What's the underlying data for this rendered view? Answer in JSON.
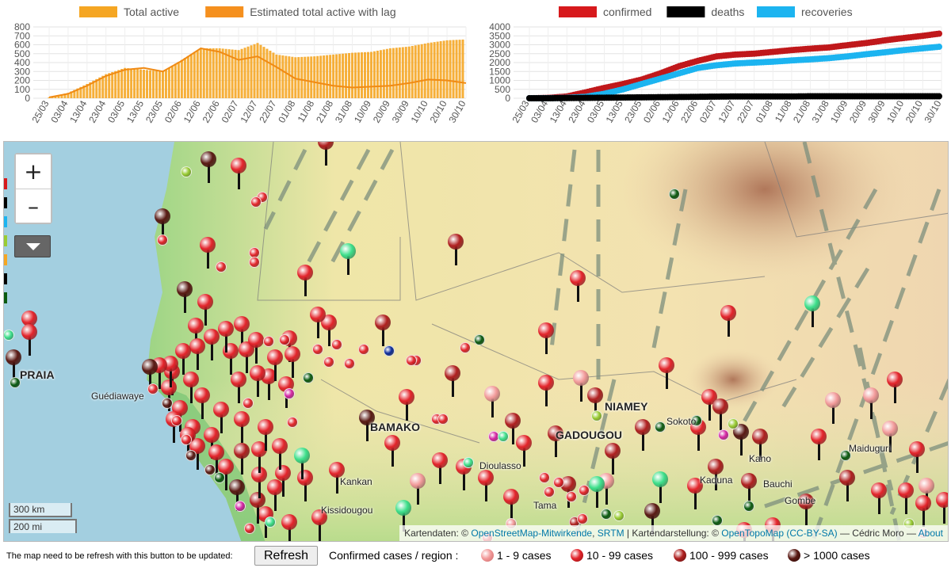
{
  "charts": {
    "left": {
      "legend": [
        {
          "label": "Total active",
          "color": "#f5a623"
        },
        {
          "label": "Estimated total active with lag",
          "color": "#f5901e"
        }
      ],
      "yticks": [
        "800",
        "700",
        "600",
        "500",
        "400",
        "300",
        "200",
        "100",
        "0"
      ]
    },
    "right": {
      "legend": [
        {
          "label": "confirmed",
          "color": "#d7191c"
        },
        {
          "label": "deaths",
          "color": "#000000"
        },
        {
          "label": "recoveries",
          "color": "#1cb4f0"
        }
      ],
      "yticks": [
        "4000",
        "3500",
        "3000",
        "2500",
        "2000",
        "1500",
        "1000",
        "500",
        "0"
      ]
    }
  },
  "chart_data": [
    {
      "type": "bar",
      "ylim": [
        0,
        800
      ],
      "x": [
        "25/03",
        "03/04",
        "13/04",
        "23/04",
        "03/05",
        "13/05",
        "23/05",
        "02/06",
        "12/06",
        "22/06",
        "02/07",
        "12/07",
        "22/07",
        "01/08",
        "11/08",
        "21/08",
        "31/08",
        "10/09",
        "20/09",
        "30/09",
        "10/10",
        "20/10",
        "30/10"
      ],
      "series": [
        {
          "name": "Total active",
          "values": [
            10,
            60,
            160,
            270,
            340,
            320,
            300,
            430,
            560,
            560,
            540,
            620,
            490,
            460,
            470,
            490,
            510,
            520,
            560,
            580,
            620,
            650,
            660
          ]
        },
        {
          "name": "Estimated total active with lag",
          "values": [
            10,
            50,
            140,
            250,
            320,
            340,
            300,
            420,
            560,
            520,
            430,
            470,
            350,
            220,
            180,
            140,
            120,
            130,
            140,
            170,
            210,
            200,
            170
          ]
        }
      ]
    },
    {
      "type": "line",
      "ylim": [
        0,
        4000
      ],
      "x": [
        "25/03",
        "03/04",
        "13/04",
        "23/04",
        "03/05",
        "13/05",
        "23/05",
        "02/06",
        "12/06",
        "22/06",
        "02/07",
        "12/07",
        "22/07",
        "01/08",
        "11/08",
        "21/08",
        "31/08",
        "10/09",
        "20/09",
        "30/09",
        "10/10",
        "20/10",
        "30/10"
      ],
      "series": [
        {
          "name": "confirmed",
          "values": [
            0,
            20,
            100,
            330,
            580,
            800,
            1050,
            1400,
            1800,
            2100,
            2350,
            2450,
            2500,
            2600,
            2700,
            2780,
            2850,
            2980,
            3100,
            3250,
            3380,
            3500,
            3640
          ]
        },
        {
          "name": "deaths",
          "values": [
            0,
            0,
            10,
            20,
            30,
            40,
            50,
            60,
            70,
            80,
            90,
            100,
            100,
            100,
            100,
            110,
            110,
            110,
            110,
            110,
            110,
            110,
            110
          ]
        },
        {
          "name": "recoveries",
          "values": [
            0,
            5,
            20,
            80,
            250,
            500,
            800,
            1100,
            1400,
            1700,
            1850,
            1950,
            2000,
            2050,
            2120,
            2180,
            2250,
            2350,
            2470,
            2580,
            2700,
            2800,
            2900
          ]
        }
      ]
    }
  ],
  "map": {
    "zoom_in": "+",
    "zoom_out": "–",
    "scale_km": "300 km",
    "scale_mi": "200 mi",
    "labels": [
      "PRAIA",
      "BAMAKO",
      "NIAMEY",
      "GADOUGOU",
      "Guédiawaye",
      "Kankan",
      "Kissidougou",
      "Kano",
      "Maiduguri",
      "Bauchi",
      "Sokoto",
      "Dioulasso",
      "Tama",
      "Gombe",
      "Kaduna"
    ],
    "attribution": {
      "prefix": "Kartendaten: ©",
      "osm": "OpenStreetMap-Mitwirkende",
      "srtm": "SRTM",
      "mid": "| Kartendarstellung: ©",
      "otm": "OpenTopoMap",
      "license": "(CC-BY-SA)",
      "author": "— Cédric Moro —",
      "about": "About"
    },
    "marker_colors": {
      "c1": "#f29a9a",
      "c2": "#e3242b",
      "c3": "#b02020",
      "c4": "#5a1a14",
      "recovered": "#3cdf8a",
      "dead": "#0a5a10",
      "other_blue": "#0a2a9a",
      "magenta": "#d424a4",
      "lime": "#99cc33"
    }
  },
  "footer": {
    "note": "The map need to be refresh with this button to be updated:",
    "refresh_label": "Refresh",
    "legend_title": "Confirmed cases / region :",
    "legend": [
      {
        "label": "1 - 9 cases",
        "color": "#f29a9a"
      },
      {
        "label": "10 - 99 cases",
        "color": "#e3242b"
      },
      {
        "label": "100 - 999 cases",
        "color": "#b02020"
      },
      {
        "label": "> 1000 cases",
        "color": "#5a1a14"
      }
    ]
  }
}
